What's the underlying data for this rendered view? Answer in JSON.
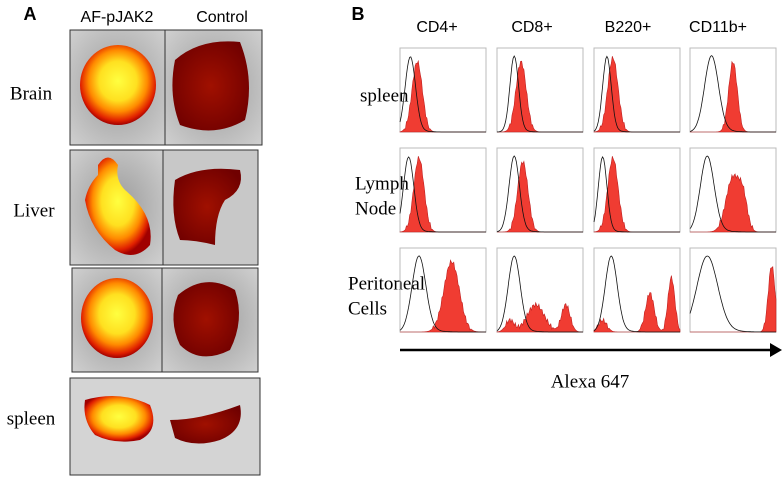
{
  "panel_a": {
    "label": "A",
    "columns": [
      "AF-pJAK2",
      "Control"
    ],
    "row_labels": [
      "Brain",
      "Liver",
      "spleen"
    ]
  },
  "panel_b": {
    "label": "B",
    "columns": [
      "CD4+",
      "CD8+",
      "B220+",
      "CD11b+"
    ],
    "rows": [
      [
        "spleen"
      ],
      [
        "Lymph",
        "Node"
      ],
      [
        "Peritoneal",
        "Cells"
      ]
    ],
    "x_axis_label": "Alexa 647"
  }
}
